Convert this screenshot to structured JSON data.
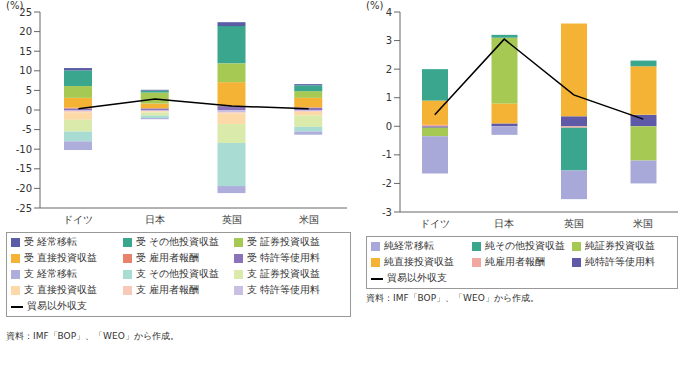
{
  "chart_data": [
    {
      "type": "bar",
      "stacked": true,
      "legend": "bottom",
      "ylabel": "(%)",
      "source": "資料：IMF「BOP」、「WEO」から作成。",
      "categories": [
        "ドイツ",
        "日本",
        "英国",
        "米国"
      ],
      "ylim": [
        -25,
        25
      ],
      "yticks": [
        -25,
        -20,
        -15,
        -10,
        -5,
        0,
        5,
        10,
        15,
        20,
        25
      ],
      "series": [
        {
          "name": "受 経常移転",
          "color": "#5a5ca6",
          "values": [
            0.6,
            0.2,
            1.0,
            0.3
          ]
        },
        {
          "name": "受 その他投資収益",
          "color": "#3aa68e",
          "values": [
            4.0,
            0.5,
            9.5,
            1.5
          ]
        },
        {
          "name": "受 証券投資収益",
          "color": "#a6c954",
          "values": [
            3.0,
            2.8,
            4.8,
            1.7
          ]
        },
        {
          "name": "受 直接投資収益",
          "color": "#f5b335",
          "values": [
            2.5,
            1.2,
            6.0,
            2.4
          ]
        },
        {
          "name": "受 雇用者報酬",
          "color": "#e8826b",
          "values": [
            0.2,
            0.05,
            0.1,
            0.1
          ]
        },
        {
          "name": "受 特許等使用料",
          "color": "#8a73b8",
          "values": [
            0.4,
            0.4,
            1.0,
            0.6
          ]
        },
        {
          "name": "支 経常移転",
          "color": "#aeaedc",
          "values": [
            -2.2,
            -0.3,
            -1.8,
            -0.8
          ]
        },
        {
          "name": "支 その他投資収益",
          "color": "#a9ddd3",
          "values": [
            -2.5,
            -0.6,
            -11.0,
            -1.2
          ]
        },
        {
          "name": "支 証券投資収益",
          "color": "#d9eaaa",
          "values": [
            -3.0,
            -0.8,
            -4.8,
            -2.9
          ]
        },
        {
          "name": "支 直接投資収益",
          "color": "#fcd9a6",
          "values": [
            -1.9,
            -0.3,
            -2.7,
            -0.9
          ]
        },
        {
          "name": "支 雇用者報酬",
          "color": "#f8c8b8",
          "values": [
            -0.3,
            -0.05,
            -0.3,
            -0.2
          ]
        },
        {
          "name": "支 特許等使用料",
          "color": "#c8bfe2",
          "values": [
            -0.3,
            -0.3,
            -0.6,
            -0.3
          ]
        },
        {
          "name": "貿易以外収支",
          "type": "line",
          "marker": "none",
          "color": "#000000",
          "values": [
            0.3,
            2.8,
            1.0,
            0.3
          ]
        }
      ]
    },
    {
      "type": "bar",
      "stacked": true,
      "legend": "bottom",
      "ylabel": "(%)",
      "source": "資料：IMF「BOP」、「WEO」から作成。",
      "categories": [
        "ドイツ",
        "日本",
        "英国",
        "米国"
      ],
      "ylim": [
        -3,
        4
      ],
      "yticks": [
        -3,
        -2,
        -1,
        0,
        1,
        2,
        3,
        4
      ],
      "series": [
        {
          "name": "純経常移転",
          "color": "#a9a9d9",
          "values": [
            -1.3,
            -0.3,
            -1.0,
            -0.8
          ]
        },
        {
          "name": "純その他投資収益",
          "color": "#3aa68e",
          "values": [
            1.1,
            0.1,
            -1.5,
            0.2
          ]
        },
        {
          "name": "純証券投資収益",
          "color": "#a6c954",
          "values": [
            -0.3,
            2.3,
            0,
            -1.2
          ]
        },
        {
          "name": "純直接投資収益",
          "color": "#f5b335",
          "values": [
            0.85,
            0.7,
            3.25,
            1.7
          ]
        },
        {
          "name": "純雇用者報酬",
          "color": "#f0a8a0",
          "values": [
            0.05,
            0,
            -0.05,
            0
          ]
        },
        {
          "name": "純特許等使用料",
          "color": "#5f5aa8",
          "values": [
            -0.05,
            0.1,
            0.35,
            0.4
          ]
        },
        {
          "name": "貿易以外収支",
          "type": "line",
          "marker": "none",
          "color": "#000000",
          "values": [
            0.4,
            3.05,
            1.1,
            0.25
          ]
        }
      ]
    }
  ]
}
